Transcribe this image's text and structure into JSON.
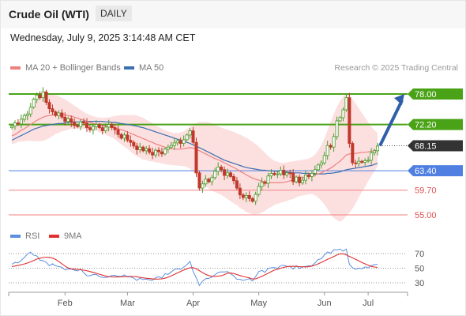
{
  "header": {
    "title": "Crude Oil (WTI)",
    "timeframe": "DAILY"
  },
  "datetime": "Wednesday, July 9, 2025 3:14:48 AM CET",
  "legend": {
    "ma20_label": "MA 20 + Bollinger Bands",
    "ma50_label": "MA 50",
    "credit": "Research © 2025 Trading Central"
  },
  "colors": {
    "ma20": "#f08080",
    "ma50": "#3a6fb0",
    "band_fill": "#fbd5d5",
    "resistance": "#4aa317",
    "support_blue": "#4f7fe0",
    "support_red": "#f08080",
    "current_price": "#333333",
    "arrow": "#2f5fa8",
    "candle_up": "#4a9a2a",
    "candle_down": "#c0392b",
    "rsi": "#5b8fe0",
    "rsi_ma": "#e03030"
  },
  "chart_data": [
    {
      "type": "candlestick",
      "x_labels": [
        "Feb",
        "Mar",
        "Apr",
        "May",
        "Jun",
        "Jul"
      ],
      "price_levels": [
        {
          "value": 78.0,
          "label": "78.00",
          "kind": "resistance"
        },
        {
          "value": 72.2,
          "label": "72.20",
          "kind": "resistance"
        },
        {
          "value": 68.15,
          "label": "68.15",
          "kind": "current"
        },
        {
          "value": 63.4,
          "label": "63.40",
          "kind": "support"
        },
        {
          "value": 59.7,
          "label": "59.70",
          "kind": "support"
        },
        {
          "value": 55.0,
          "label": "55.00",
          "kind": "support"
        }
      ],
      "candles_close": [
        71.9,
        72.5,
        72.3,
        73.2,
        73.9,
        74.2,
        75.5,
        77.0,
        77.8,
        77.3,
        78.4,
        76.4,
        75.2,
        74.6,
        73.9,
        74.4,
        73.6,
        72.8,
        73.3,
        72.6,
        72.0,
        71.8,
        72.7,
        72.5,
        71.6,
        71.2,
        71.8,
        72.2,
        71.6,
        71.0,
        71.7,
        72.2,
        71.6,
        71.2,
        70.3,
        69.6,
        70.2,
        69.2,
        68.8,
        68.1,
        67.4,
        67.9,
        67.2,
        67.6,
        66.9,
        66.4,
        67.3,
        67.0,
        66.6,
        67.5,
        67.9,
        68.2,
        68.7,
        69.1,
        68.6,
        69.3,
        70.2,
        71.0,
        68.8,
        63.0,
        60.1,
        60.9,
        61.8,
        61.3,
        62.1,
        63.3,
        64.1,
        63.6,
        62.5,
        63.0,
        62.3,
        61.5,
        60.1,
        58.8,
        58.3,
        58.7,
        58.1,
        57.6,
        58.9,
        60.4,
        61.2,
        61.0,
        62.4,
        62.9,
        62.7,
        62.8,
        63.5,
        62.6,
        63.0,
        62.9,
        61.3,
        62.2,
        61.1,
        61.6,
        62.6,
        62.3,
        62.9,
        63.6,
        64.5,
        64.9,
        66.3,
        68.2,
        67.9,
        69.9,
        72.9,
        73.5,
        75.0,
        77.3,
        68.6,
        64.9,
        64.8,
        65.2,
        65.0,
        65.3,
        65.4,
        66.8,
        67.2,
        68.1
      ],
      "ma20": [
        70.0,
        70.3,
        70.7,
        71.1,
        71.4,
        71.8,
        72.2,
        72.6,
        73.0,
        73.3,
        73.6,
        73.8,
        73.9,
        74.0,
        74.1,
        74.1,
        74.1,
        74.0,
        73.9,
        73.8,
        73.6,
        73.4,
        73.2,
        73.0,
        72.8,
        72.6,
        72.4,
        72.3,
        72.1,
        72.0,
        71.9,
        71.8,
        71.7,
        71.6,
        71.4,
        71.2,
        71.0,
        70.8,
        70.5,
        70.3,
        70.0,
        69.8,
        69.5,
        69.3,
        69.0,
        68.8,
        68.5,
        68.3,
        68.1,
        67.9,
        67.7,
        67.6,
        67.5,
        67.5,
        67.5,
        67.6,
        67.7,
        67.8,
        67.7,
        67.5,
        67.2,
        66.9,
        66.6,
        66.3,
        66.0,
        65.7,
        65.5,
        65.2,
        64.9,
        64.6,
        64.3,
        64.0,
        63.7,
        63.3,
        63.0,
        62.6,
        62.3,
        62.0,
        61.8,
        61.6,
        61.4,
        61.3,
        61.2,
        61.1,
        61.1,
        61.1,
        61.1,
        61.2,
        61.3,
        61.5,
        61.6,
        61.8,
        62.0,
        62.1,
        62.2,
        62.3,
        62.5,
        62.6,
        62.8,
        63.0,
        63.3,
        63.6,
        63.9,
        64.3,
        64.8,
        65.2,
        65.8,
        66.4,
        66.6,
        66.6,
        66.7,
        66.8,
        66.9,
        66.9,
        67.0,
        67.1,
        67.2,
        67.4
      ],
      "upper_band": [
        71.5,
        72.0,
        72.5,
        73.2,
        73.8,
        74.5,
        75.3,
        76.2,
        77.0,
        77.6,
        78.1,
        78.3,
        78.2,
        78.0,
        77.8,
        77.6,
        77.3,
        77.0,
        76.6,
        76.2,
        75.8,
        75.4,
        75.0,
        74.6,
        74.3,
        74.0,
        73.8,
        73.6,
        73.5,
        73.5,
        73.5,
        73.6,
        73.7,
        73.8,
        73.9,
        74.0,
        74.0,
        74.0,
        74.0,
        74.0,
        73.9,
        73.7,
        73.5,
        73.1,
        72.8,
        72.4,
        72.0,
        71.7,
        71.4,
        71.1,
        70.9,
        70.7,
        70.6,
        70.6,
        70.7,
        70.9,
        71.3,
        71.8,
        72.2,
        72.5,
        72.7,
        72.7,
        72.7,
        72.6,
        72.4,
        72.1,
        71.9,
        71.6,
        71.4,
        71.2,
        71.0,
        70.8,
        70.5,
        70.3,
        70.0,
        69.7,
        69.3,
        68.9,
        68.5,
        68.0,
        67.4,
        66.8,
        66.2,
        65.7,
        65.3,
        65.1,
        64.9,
        64.9,
        65.0,
        65.1,
        65.2,
        65.3,
        65.4,
        65.5,
        65.6,
        65.7,
        66.0,
        66.5,
        67.3,
        68.3,
        69.6,
        71.1,
        72.7,
        74.2,
        75.6,
        76.7,
        77.5,
        78.0,
        77.8,
        77.0,
        76.2,
        75.3,
        74.4,
        73.5,
        72.6,
        71.8,
        71.1,
        70.6
      ],
      "lower_band": [
        68.5,
        68.6,
        68.9,
        69.0,
        69.0,
        69.1,
        69.1,
        69.0,
        69.0,
        69.0,
        69.1,
        69.3,
        69.6,
        70.0,
        70.4,
        70.6,
        70.9,
        71.0,
        71.2,
        71.4,
        71.4,
        71.4,
        71.4,
        71.4,
        71.3,
        71.2,
        71.0,
        71.0,
        70.7,
        70.5,
        70.3,
        70.0,
        69.7,
        69.4,
        68.9,
        68.4,
        68.0,
        67.6,
        67.0,
        66.6,
        66.1,
        65.9,
        65.5,
        65.5,
        65.2,
        65.2,
        65.0,
        64.9,
        64.8,
        64.7,
        64.5,
        64.5,
        64.4,
        64.4,
        64.3,
        64.3,
        64.1,
        63.8,
        63.2,
        62.5,
        61.7,
        61.1,
        60.5,
        60.0,
        59.6,
        59.3,
        59.1,
        58.8,
        58.4,
        58.0,
        57.6,
        57.2,
        56.9,
        56.3,
        56.0,
        55.5,
        55.3,
        55.1,
        55.1,
        55.2,
        55.4,
        55.8,
        56.2,
        56.5,
        56.9,
        57.1,
        57.3,
        57.5,
        57.6,
        57.9,
        58.0,
        58.3,
        58.6,
        58.7,
        58.8,
        58.9,
        59.0,
        58.7,
        58.3,
        57.7,
        57.0,
        56.1,
        55.1,
        54.4,
        54.0,
        53.7,
        54.1,
        54.8,
        55.4,
        56.2,
        57.2,
        58.3,
        59.4,
        60.3,
        61.4,
        62.4,
        63.3,
        64.2
      ],
      "ma50": [
        69.2,
        69.5,
        69.8,
        70.1,
        70.4,
        70.7,
        71.0,
        71.3,
        71.5,
        71.7,
        71.9,
        72.0,
        72.1,
        72.2,
        72.3,
        72.4,
        72.4,
        72.5,
        72.6,
        72.6,
        72.7,
        72.7,
        72.7,
        72.8,
        72.8,
        72.8,
        72.8,
        72.8,
        72.8,
        72.8,
        72.7,
        72.7,
        72.6,
        72.6,
        72.5,
        72.4,
        72.3,
        72.2,
        72.1,
        72.0,
        71.9,
        71.7,
        71.6,
        71.4,
        71.2,
        71.0,
        70.8,
        70.6,
        70.4,
        70.2,
        70.0,
        69.8,
        69.6,
        69.4,
        69.2,
        69.0,
        68.8,
        68.6,
        68.3,
        68.1,
        67.8,
        67.5,
        67.2,
        66.9,
        66.6,
        66.3,
        66.0,
        65.7,
        65.4,
        65.2,
        65.0,
        64.8,
        64.6,
        64.4,
        64.2,
        64.0,
        63.9,
        63.8,
        63.7,
        63.6,
        63.5,
        63.5,
        63.4,
        63.4,
        63.3,
        63.3,
        63.2,
        63.2,
        63.1,
        63.1,
        63.0,
        63.0,
        63.0,
        62.9,
        62.9,
        62.9,
        62.8,
        62.8,
        62.8,
        62.8,
        62.8,
        62.9,
        62.9,
        63.0,
        63.1,
        63.2,
        63.4,
        63.6,
        63.7,
        63.8,
        63.9,
        64.0,
        64.1,
        64.2,
        64.3,
        64.4,
        64.6,
        64.8
      ]
    },
    {
      "type": "line",
      "legend": [
        "RSI",
        "9MA"
      ],
      "y_ticks": [
        {
          "value": 70,
          "label": "70"
        },
        {
          "value": 50,
          "label": "50"
        },
        {
          "value": 30,
          "label": "30"
        }
      ],
      "ylim": [
        20,
        80
      ],
      "rsi": [
        55.3,
        57.9,
        57.4,
        60.7,
        64.7,
        69.5,
        72.0,
        67.7,
        66.9,
        61.0,
        60.2,
        58.1,
        53.3,
        56.0,
        53.2,
        52.3,
        51.3,
        47.6,
        49.0,
        48.9,
        47.4,
        46.2,
        48.9,
        43.9,
        39.7,
        39.6,
        41.4,
        41.6,
        38.4,
        37.5,
        37.1,
        38.1,
        40.1,
        40.3,
        38.9,
        38.6,
        40.8,
        37.9,
        38.2,
        36.4,
        33.4,
        36.4,
        34.3,
        35.3,
        33.9,
        33.6,
        36.9,
        38.3,
        36.5,
        42.4,
        41.6,
        44.8,
        48.3,
        49.4,
        48.3,
        51.6,
        54.8,
        59.4,
        45.5,
        36.9,
        26.3,
        32.2,
        35.7,
        36.1,
        37.9,
        40.9,
        44.2,
        45.0,
        44.9,
        45.4,
        42.4,
        39.4,
        34.9,
        34.8,
        33.3,
        34.5,
        35.6,
        32.5,
        38.5,
        45.5,
        47.0,
        44.4,
        49.7,
        50.6,
        50.8,
        49.9,
        53.5,
        54.0,
        52.6,
        52.2,
        48.8,
        53.6,
        49.4,
        51.8,
        52.6,
        53.1,
        53.4,
        57.2,
        61.9,
        62.8,
        68.2,
        72.2,
        70.4,
        75.1,
        75.0,
        76.2,
        73.3,
        76.2,
        55.2,
        50.7,
        48.4,
        50.0,
        49.2,
        51.8,
        50.5,
        53.2,
        55.0,
        55.1
      ],
      "ma9": [
        52.0,
        53.0,
        53.9,
        54.8,
        55.8,
        57.1,
        58.7,
        60.6,
        62.5,
        63.7,
        64.6,
        65.1,
        64.8,
        63.8,
        62.0,
        59.3,
        56.1,
        53.0,
        50.3,
        49.1,
        48.7,
        48.3,
        47.9,
        47.3,
        46.5,
        45.5,
        44.3,
        43.1,
        41.8,
        40.5,
        39.3,
        38.6,
        38.2,
        38.0,
        38.0,
        38.1,
        38.4,
        38.6,
        38.8,
        38.6,
        38.2,
        37.6,
        36.8,
        36.3,
        35.8,
        35.3,
        35.1,
        35.2,
        35.4,
        36.3,
        37.7,
        39.5,
        41.5,
        43.6,
        45.6,
        47.5,
        49.1,
        50.6,
        50.8,
        49.4,
        46.7,
        44.0,
        41.7,
        40.0,
        38.9,
        38.7,
        39.1,
        39.6,
        41.2,
        43.2,
        43.4,
        42.6,
        41.3,
        40.0,
        38.6,
        37.7,
        36.7,
        35.3,
        35.4,
        37.0,
        39.0,
        40.9,
        43.1,
        45.3,
        47.4,
        48.6,
        50.0,
        51.1,
        52.0,
        52.5,
        52.6,
        52.5,
        52.0,
        51.9,
        51.7,
        52.1,
        52.9,
        54.2,
        55.9,
        58.0,
        60.1,
        62.1,
        64.0,
        66.0,
        68.2,
        69.6,
        69.8,
        68.3,
        66.1,
        64.2,
        62.1,
        60.0,
        57.9,
        55.9,
        54.1,
        52.5,
        51.6,
        51.1
      ]
    }
  ]
}
